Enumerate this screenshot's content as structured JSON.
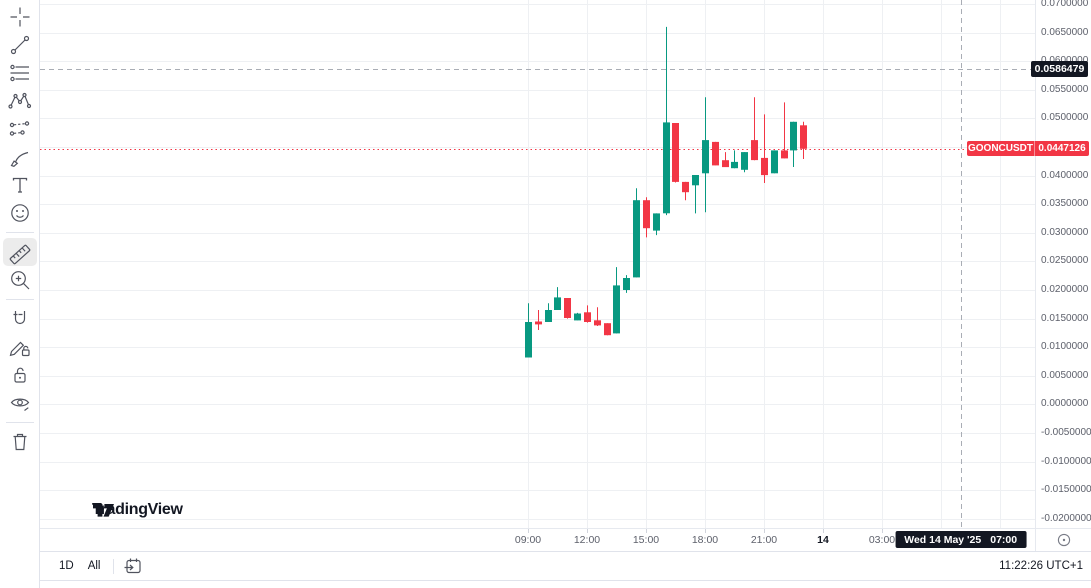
{
  "app": {
    "name": "TradingView chart"
  },
  "toolbar": {
    "icons": [
      "crosshair-icon",
      "trend-line-icon",
      "fib-retracement-icon",
      "xabcd-pattern-icon",
      "projection-icon",
      "brush-icon",
      "text-icon",
      "emoji-icon",
      "ruler-icon",
      "zoom-in-icon",
      "magnet-icon",
      "drawing-mode-lock-icon",
      "lock-all-drawings-icon",
      "hide-drawings-icon",
      "remove-drawings-icon"
    ],
    "active_icon": "ruler-icon"
  },
  "logo": {
    "text": "TradingView"
  },
  "chart_data": {
    "type": "candlestick",
    "symbol": "GOONCUSDT",
    "interval": "30m",
    "up_color": "#089981",
    "down_color": "#f23645",
    "grid_color": "#eef0f3",
    "y_axis": {
      "min": -0.02,
      "max": 0.07,
      "step": 0.005,
      "labels": [
        "0.0700000",
        "0.0650000",
        "0.0600000",
        "0.0550000",
        "0.0500000",
        "0.0400000",
        "0.0350000",
        "0.0300000",
        "0.0250000",
        "0.0200000",
        "0.0150000",
        "0.0100000",
        "0.0050000",
        "0.0000000",
        "-0.0050000",
        "-0.0100000",
        "-0.0150000",
        "-0.0200000"
      ]
    },
    "x_axis": {
      "ticks": [
        {
          "label": "09:00",
          "i": 0
        },
        {
          "label": "12:00",
          "i": 6
        },
        {
          "label": "15:00",
          "i": 12
        },
        {
          "label": "18:00",
          "i": 18
        },
        {
          "label": "21:00",
          "i": 24
        },
        {
          "label": "14",
          "i": 30,
          "major": true
        },
        {
          "label": "03:00",
          "i": 36
        }
      ],
      "grid_only_i": [
        42,
        48
      ]
    },
    "candles": [
      {
        "t": "09:00",
        "o": 0.0082,
        "h": 0.0177,
        "l": 0.0082,
        "c": 0.0144
      },
      {
        "t": "09:30",
        "o": 0.0145,
        "h": 0.0165,
        "l": 0.013,
        "c": 0.014
      },
      {
        "t": "10:00",
        "o": 0.0144,
        "h": 0.0177,
        "l": 0.0144,
        "c": 0.0165
      },
      {
        "t": "10:30",
        "o": 0.0165,
        "h": 0.0205,
        "l": 0.0165,
        "c": 0.0187
      },
      {
        "t": "11:00",
        "o": 0.0186,
        "h": 0.0186,
        "l": 0.015,
        "c": 0.0151
      },
      {
        "t": "11:30",
        "o": 0.0147,
        "h": 0.016,
        "l": 0.0147,
        "c": 0.0159
      },
      {
        "t": "12:00",
        "o": 0.0161,
        "h": 0.0173,
        "l": 0.0143,
        "c": 0.0144
      },
      {
        "t": "12:30",
        "o": 0.0147,
        "h": 0.017,
        "l": 0.0137,
        "c": 0.0138
      },
      {
        "t": "13:00",
        "o": 0.0142,
        "h": 0.0142,
        "l": 0.0121,
        "c": 0.0121
      },
      {
        "t": "13:30",
        "o": 0.0124,
        "h": 0.024,
        "l": 0.0124,
        "c": 0.0208
      },
      {
        "t": "14:00",
        "o": 0.02,
        "h": 0.0226,
        "l": 0.0195,
        "c": 0.0221
      },
      {
        "t": "14:30",
        "o": 0.0222,
        "h": 0.0378,
        "l": 0.0222,
        "c": 0.0357
      },
      {
        "t": "15:00",
        "o": 0.0357,
        "h": 0.0362,
        "l": 0.0292,
        "c": 0.0308
      },
      {
        "t": "15:30",
        "o": 0.0304,
        "h": 0.0334,
        "l": 0.0296,
        "c": 0.0334
      },
      {
        "t": "16:00",
        "o": 0.0334,
        "h": 0.066,
        "l": 0.0331,
        "c": 0.0493
      },
      {
        "t": "16:30",
        "o": 0.0492,
        "h": 0.0492,
        "l": 0.0388,
        "c": 0.0389
      },
      {
        "t": "17:00",
        "o": 0.0389,
        "h": 0.0389,
        "l": 0.0357,
        "c": 0.0371
      },
      {
        "t": "17:30",
        "o": 0.0383,
        "h": 0.0401,
        "l": 0.0334,
        "c": 0.0401
      },
      {
        "t": "18:00",
        "o": 0.0404,
        "h": 0.0537,
        "l": 0.0336,
        "c": 0.0462
      },
      {
        "t": "18:30",
        "o": 0.0459,
        "h": 0.0459,
        "l": 0.0418,
        "c": 0.0418
      },
      {
        "t": "19:00",
        "o": 0.0427,
        "h": 0.0441,
        "l": 0.0415,
        "c": 0.0415
      },
      {
        "t": "19:30",
        "o": 0.0413,
        "h": 0.0444,
        "l": 0.0413,
        "c": 0.0424
      },
      {
        "t": "20:00",
        "o": 0.041,
        "h": 0.0441,
        "l": 0.0406,
        "c": 0.0441
      },
      {
        "t": "20:30",
        "o": 0.0462,
        "h": 0.0537,
        "l": 0.0427,
        "c": 0.0427
      },
      {
        "t": "21:00",
        "o": 0.0431,
        "h": 0.0507,
        "l": 0.0387,
        "c": 0.0401
      },
      {
        "t": "21:30",
        "o": 0.0404,
        "h": 0.0444,
        "l": 0.0404,
        "c": 0.0444
      },
      {
        "t": "22:00",
        "o": 0.0444,
        "h": 0.0528,
        "l": 0.043,
        "c": 0.043
      },
      {
        "t": "22:30",
        "o": 0.0444,
        "h": 0.0494,
        "l": 0.0415,
        "c": 0.0494
      },
      {
        "t": "23:00",
        "o": 0.0488,
        "h": 0.0494,
        "l": 0.0429,
        "c": 0.0447
      }
    ],
    "last_price": {
      "value": 0.0447126,
      "label": "0.0447126",
      "direction": "down"
    },
    "crosshair": {
      "i": 44,
      "price": 0.0586479,
      "price_label": "0.0586479",
      "date_label": "Wed 14 May '25",
      "time_label": "07:00"
    }
  },
  "price_scale": {
    "settings_icon": "price-scale-settings-icon"
  },
  "bottom_bar": {
    "interval": "1D",
    "range": "All",
    "goto_icon": "go-to-date-icon",
    "clock": "11:22:26 UTC+1"
  }
}
